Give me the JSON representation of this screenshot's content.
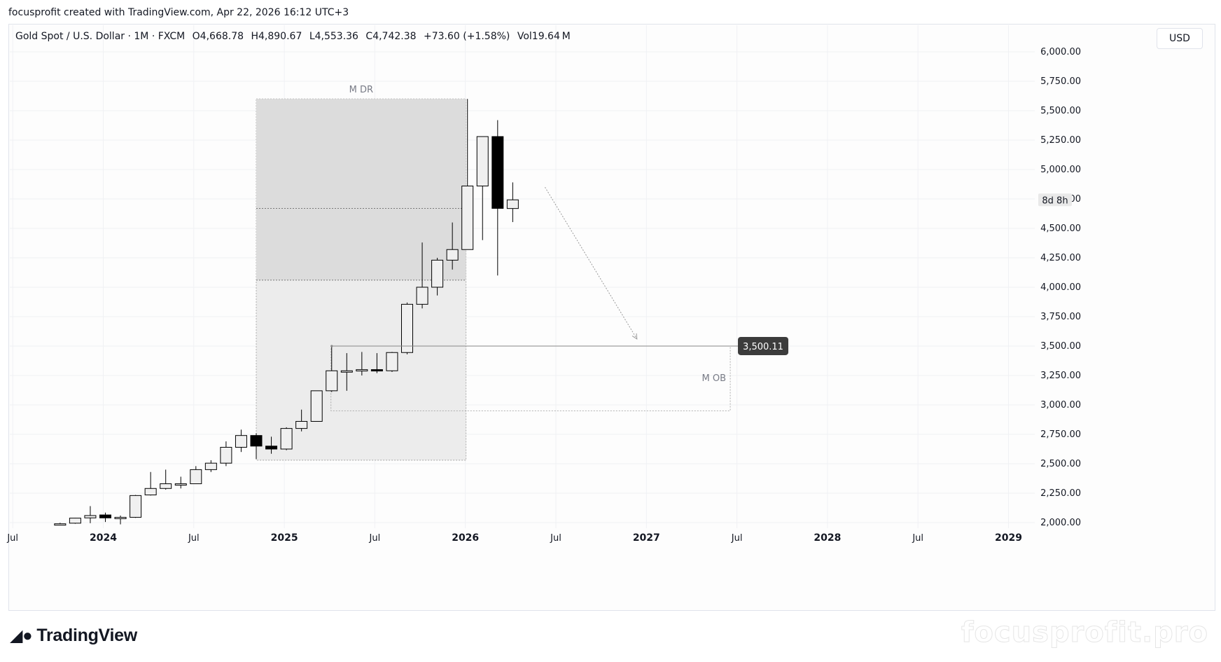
{
  "header": {
    "caption": "focusprofit created with TradingView.com, Apr 22, 2026 16:12 UTC+3"
  },
  "legend": {
    "symbol": "Gold Spot / U.S. Dollar · 1M · FXCM",
    "open": "O4,668.78",
    "high": "H4,890.67",
    "low": "L4,553.36",
    "close": "C4,742.38",
    "change": "+73.60 (+1.58%)",
    "volume": "Vol19.64",
    "volume_unit": "M"
  },
  "currency_button": "USD",
  "countdown_label": "8d 8h",
  "price_marker_label": "3,500.11",
  "footer": {
    "brand": "TradingView",
    "watermark": "focusprofit.pro"
  },
  "colors": {
    "bull_fill": "#f0f0f0",
    "bear_fill": "#000000",
    "candle_outline": "#000000",
    "zone_fill": "#e0e0e0",
    "marker_bg": "#3c3c3c"
  },
  "chart_data": {
    "type": "candlestick",
    "symbol": "XAUUSD",
    "timeframe": "1M",
    "ylim": [
      2000,
      6000
    ],
    "y_ticks": [
      "6,000.00",
      "5,750.00",
      "5,500.00",
      "5,250.00",
      "5,000.00",
      "4,750.00",
      "4,500.00",
      "4,250.00",
      "4,000.00",
      "3,750.00",
      "3,500.00",
      "3,250.00",
      "3,000.00",
      "2,750.00",
      "2,500.00",
      "2,250.00",
      "2,000.00"
    ],
    "y_tick_values": [
      6000,
      5750,
      5500,
      5250,
      5000,
      4750,
      4500,
      4250,
      4000,
      3750,
      3500,
      3250,
      3000,
      2750,
      2500,
      2250,
      2000
    ],
    "x_ticks": [
      {
        "label": "Jul",
        "date": "2023-07-01",
        "bold": false
      },
      {
        "label": "2024",
        "date": "2024-01-01",
        "bold": true
      },
      {
        "label": "Jul",
        "date": "2024-07-01",
        "bold": false
      },
      {
        "label": "2025",
        "date": "2025-01-01",
        "bold": true
      },
      {
        "label": "Jul",
        "date": "2025-07-01",
        "bold": false
      },
      {
        "label": "2026",
        "date": "2026-01-01",
        "bold": true
      },
      {
        "label": "Jul",
        "date": "2026-07-01",
        "bold": false
      },
      {
        "label": "2027",
        "date": "2027-01-01",
        "bold": true
      },
      {
        "label": "Jul",
        "date": "2027-07-01",
        "bold": false
      },
      {
        "label": "2028",
        "date": "2028-01-01",
        "bold": true
      },
      {
        "label": "Jul",
        "date": "2028-07-01",
        "bold": false
      },
      {
        "label": "2029",
        "date": "2029-01-01",
        "bold": true
      }
    ],
    "candles": [
      {
        "date": "2023-10-01",
        "o": 1985,
        "h": 1998,
        "l": 1980,
        "c": 1990
      },
      {
        "date": "2023-11-01",
        "o": 1995,
        "h": 2040,
        "l": 1990,
        "c": 2038
      },
      {
        "date": "2023-12-01",
        "o": 2040,
        "h": 2140,
        "l": 1995,
        "c": 2060
      },
      {
        "date": "2024-01-01",
        "o": 2065,
        "h": 2085,
        "l": 2005,
        "c": 2040
      },
      {
        "date": "2024-02-01",
        "o": 2040,
        "h": 2060,
        "l": 1985,
        "c": 2045
      },
      {
        "date": "2024-03-01",
        "o": 2045,
        "h": 2235,
        "l": 2040,
        "c": 2230
      },
      {
        "date": "2024-04-01",
        "o": 2235,
        "h": 2430,
        "l": 2230,
        "c": 2290
      },
      {
        "date": "2024-05-01",
        "o": 2290,
        "h": 2450,
        "l": 2280,
        "c": 2330
      },
      {
        "date": "2024-06-01",
        "o": 2330,
        "h": 2390,
        "l": 2290,
        "c": 2330
      },
      {
        "date": "2024-07-01",
        "o": 2330,
        "h": 2480,
        "l": 2330,
        "c": 2450
      },
      {
        "date": "2024-08-01",
        "o": 2450,
        "h": 2530,
        "l": 2430,
        "c": 2505
      },
      {
        "date": "2024-09-01",
        "o": 2505,
        "h": 2690,
        "l": 2480,
        "c": 2640
      },
      {
        "date": "2024-10-01",
        "o": 2640,
        "h": 2790,
        "l": 2600,
        "c": 2740
      },
      {
        "date": "2024-11-01",
        "o": 2740,
        "h": 2760,
        "l": 2540,
        "c": 2650
      },
      {
        "date": "2024-12-01",
        "o": 2650,
        "h": 2730,
        "l": 2585,
        "c": 2625
      },
      {
        "date": "2025-01-01",
        "o": 2625,
        "h": 2810,
        "l": 2615,
        "c": 2800
      },
      {
        "date": "2025-02-01",
        "o": 2800,
        "h": 2960,
        "l": 2775,
        "c": 2860
      },
      {
        "date": "2025-03-01",
        "o": 2860,
        "h": 3120,
        "l": 2860,
        "c": 3120
      },
      {
        "date": "2025-04-01",
        "o": 3120,
        "h": 3500,
        "l": 3110,
        "c": 3290
      },
      {
        "date": "2025-05-01",
        "o": 3290,
        "h": 3440,
        "l": 3120,
        "c": 3290
      },
      {
        "date": "2025-06-01",
        "o": 3290,
        "h": 3450,
        "l": 3250,
        "c": 3300
      },
      {
        "date": "2025-07-01",
        "o": 3300,
        "h": 3440,
        "l": 3270,
        "c": 3290
      },
      {
        "date": "2025-08-01",
        "o": 3290,
        "h": 3450,
        "l": 3280,
        "c": 3445
      },
      {
        "date": "2025-09-01",
        "o": 3445,
        "h": 3870,
        "l": 3430,
        "c": 3855
      },
      {
        "date": "2025-10-01",
        "o": 3855,
        "h": 4380,
        "l": 3820,
        "c": 4000
      },
      {
        "date": "2025-11-01",
        "o": 4000,
        "h": 4250,
        "l": 3930,
        "c": 4230
      },
      {
        "date": "2025-12-01",
        "o": 4230,
        "h": 4550,
        "l": 4150,
        "c": 4320
      },
      {
        "date": "2026-01-01",
        "o": 4320,
        "h": 5600,
        "l": 4320,
        "c": 4860
      },
      {
        "date": "2026-02-01",
        "o": 4860,
        "h": 5280,
        "l": 4400,
        "c": 5280
      },
      {
        "date": "2026-03-01",
        "o": 5280,
        "h": 5420,
        "l": 4100,
        "c": 4670
      },
      {
        "date": "2026-04-01",
        "o": 4668.78,
        "h": 4890.67,
        "l": 4553.36,
        "c": 4742.38
      }
    ],
    "zones": [
      {
        "label": "M DR",
        "from": "2024-11-01",
        "to": "2026-01-01",
        "top": 5600,
        "bottom": 2530,
        "dark_bottom": 4060,
        "midline": 4670
      },
      {
        "label": "M OB",
        "from": "2025-04-01",
        "to": "2027-06-01",
        "top": 3500.11,
        "bottom": 2950
      }
    ],
    "horizontal_line": {
      "price": 3500.11,
      "from": "2025-04-01"
    },
    "projection_arrow": {
      "from_date": "2026-06-01",
      "from_price": 4850,
      "to_date": "2026-12-01",
      "to_price": 3560
    },
    "current_price_label": {
      "price": 4742.38
    }
  }
}
